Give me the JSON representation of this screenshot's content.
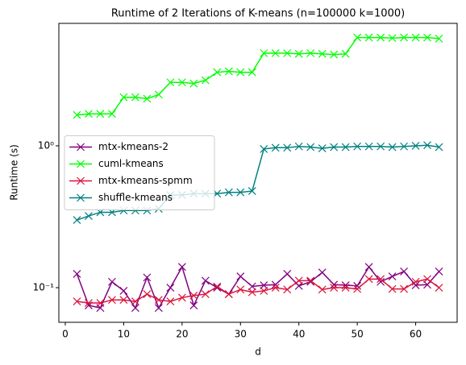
{
  "chart_data": {
    "type": "line",
    "title": "Runtime of 2 Iterations of K-means (n=100000 k=1000)",
    "x_label": "d",
    "y_label": "Runtime (s)",
    "x": [
      2,
      4,
      6,
      8,
      10,
      12,
      14,
      16,
      18,
      20,
      22,
      24,
      26,
      28,
      30,
      32,
      34,
      36,
      38,
      40,
      42,
      44,
      46,
      48,
      50,
      52,
      54,
      56,
      58,
      60,
      62,
      64
    ],
    "series": [
      {
        "name": "mtx-kmeans-2",
        "color": "#800080",
        "values": [
          0.125,
          0.075,
          0.072,
          0.11,
          0.095,
          0.072,
          0.118,
          0.072,
          0.1,
          0.14,
          0.075,
          0.112,
          0.1,
          0.09,
          0.12,
          0.102,
          0.104,
          0.105,
          0.125,
          0.103,
          0.11,
          0.128,
          0.105,
          0.104,
          0.103,
          0.14,
          0.11,
          0.12,
          0.13,
          0.104,
          0.105,
          0.13
        ]
      },
      {
        "name": "cuml-kmeans",
        "color": "#00ff00",
        "values": [
          1.65,
          1.68,
          1.68,
          1.68,
          2.2,
          2.2,
          2.15,
          2.3,
          2.8,
          2.8,
          2.75,
          2.9,
          3.3,
          3.35,
          3.3,
          3.3,
          4.5,
          4.5,
          4.5,
          4.45,
          4.5,
          4.45,
          4.4,
          4.45,
          5.8,
          5.8,
          5.8,
          5.75,
          5.8,
          5.8,
          5.8,
          5.7
        ]
      },
      {
        "name": "mtx-kmeans-spmm",
        "color": "#dc143c",
        "values": [
          0.08,
          0.078,
          0.078,
          0.082,
          0.082,
          0.08,
          0.09,
          0.082,
          0.08,
          0.085,
          0.088,
          0.09,
          0.102,
          0.09,
          0.097,
          0.093,
          0.095,
          0.1,
          0.097,
          0.112,
          0.112,
          0.097,
          0.1,
          0.1,
          0.098,
          0.115,
          0.115,
          0.098,
          0.098,
          0.11,
          0.115,
          0.1
        ]
      },
      {
        "name": "shuffle-kmeans",
        "color": "#008080",
        "values": [
          0.3,
          0.32,
          0.34,
          0.34,
          0.35,
          0.35,
          0.35,
          0.36,
          0.45,
          0.45,
          0.46,
          0.46,
          0.46,
          0.47,
          0.47,
          0.48,
          0.95,
          0.97,
          0.97,
          0.99,
          0.98,
          0.96,
          0.98,
          0.98,
          0.99,
          0.99,
          0.99,
          0.98,
          0.99,
          1.0,
          1.01,
          0.98
        ]
      }
    ],
    "xlim": [
      -1.1,
      67.1
    ],
    "xticks": [
      0,
      10,
      20,
      30,
      40,
      50,
      60
    ],
    "ylim": [
      0.057,
      7.3
    ],
    "yticks": [
      {
        "value": 0.1,
        "label": "10⁻¹"
      },
      {
        "value": 1,
        "label": "10⁰"
      }
    ],
    "log_y": true,
    "legend": "center left"
  }
}
